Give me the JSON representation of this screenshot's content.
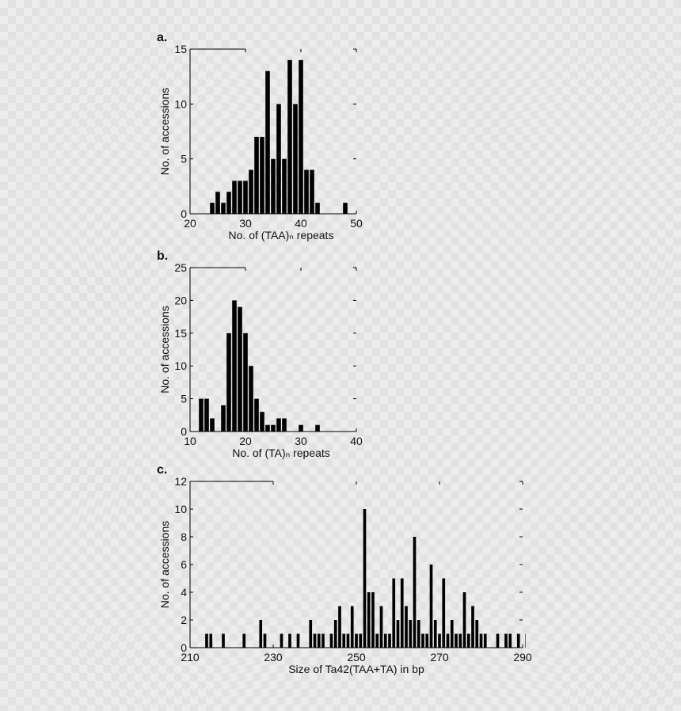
{
  "chart_data": [
    {
      "panel_label": "a.",
      "type": "bar",
      "xlabel": "No. of (TAA)ₙ repeats",
      "ylabel": "No. of accessions",
      "xlim": [
        20,
        50
      ],
      "ylim": [
        0,
        15
      ],
      "xticks": [
        20,
        30,
        40,
        50
      ],
      "yticks": [
        0,
        5,
        10,
        15
      ],
      "bar_width": 0.8,
      "points": [
        {
          "x": 24,
          "y": 1
        },
        {
          "x": 25,
          "y": 2
        },
        {
          "x": 26,
          "y": 1
        },
        {
          "x": 27,
          "y": 2
        },
        {
          "x": 28,
          "y": 3
        },
        {
          "x": 29,
          "y": 3
        },
        {
          "x": 30,
          "y": 3
        },
        {
          "x": 31,
          "y": 4
        },
        {
          "x": 32,
          "y": 7
        },
        {
          "x": 33,
          "y": 7
        },
        {
          "x": 34,
          "y": 13
        },
        {
          "x": 35,
          "y": 5
        },
        {
          "x": 36,
          "y": 10
        },
        {
          "x": 37,
          "y": 5
        },
        {
          "x": 38,
          "y": 14
        },
        {
          "x": 39,
          "y": 10
        },
        {
          "x": 40,
          "y": 14
        },
        {
          "x": 41,
          "y": 4
        },
        {
          "x": 42,
          "y": 4
        },
        {
          "x": 43,
          "y": 1
        },
        {
          "x": 48,
          "y": 1
        }
      ]
    },
    {
      "panel_label": "b.",
      "type": "bar",
      "xlabel": "No. of (TA)ₙ repeats",
      "ylabel": "No. of accessions",
      "xlim": [
        10,
        40
      ],
      "ylim": [
        0,
        25
      ],
      "xticks": [
        10,
        20,
        30,
        40
      ],
      "yticks": [
        0,
        5,
        10,
        15,
        20,
        25
      ],
      "bar_width": 0.8,
      "points": [
        {
          "x": 12,
          "y": 5
        },
        {
          "x": 13,
          "y": 5
        },
        {
          "x": 14,
          "y": 2
        },
        {
          "x": 16,
          "y": 4
        },
        {
          "x": 17,
          "y": 15
        },
        {
          "x": 18,
          "y": 20
        },
        {
          "x": 19,
          "y": 19
        },
        {
          "x": 20,
          "y": 15
        },
        {
          "x": 21,
          "y": 10
        },
        {
          "x": 22,
          "y": 5
        },
        {
          "x": 23,
          "y": 3
        },
        {
          "x": 24,
          "y": 1
        },
        {
          "x": 25,
          "y": 1
        },
        {
          "x": 26,
          "y": 2
        },
        {
          "x": 27,
          "y": 2
        },
        {
          "x": 30,
          "y": 1
        },
        {
          "x": 33,
          "y": 1
        }
      ]
    },
    {
      "panel_label": "c.",
      "type": "bar",
      "xlabel": "Size of Ta42(TAA+TA) in bp",
      "ylabel": "No. of accessions",
      "xlim": [
        210,
        290
      ],
      "ylim": [
        0,
        12
      ],
      "xticks": [
        210,
        230,
        250,
        270,
        290
      ],
      "yticks": [
        0,
        2,
        4,
        6,
        8,
        10,
        12
      ],
      "bar_width": 0.7,
      "points": [
        {
          "x": 214,
          "y": 1
        },
        {
          "x": 215,
          "y": 1
        },
        {
          "x": 218,
          "y": 1
        },
        {
          "x": 223,
          "y": 1
        },
        {
          "x": 227,
          "y": 2
        },
        {
          "x": 228,
          "y": 1
        },
        {
          "x": 232,
          "y": 1
        },
        {
          "x": 234,
          "y": 1
        },
        {
          "x": 236,
          "y": 1
        },
        {
          "x": 239,
          "y": 2
        },
        {
          "x": 240,
          "y": 1
        },
        {
          "x": 241,
          "y": 1
        },
        {
          "x": 242,
          "y": 1
        },
        {
          "x": 244,
          "y": 1
        },
        {
          "x": 245,
          "y": 2
        },
        {
          "x": 246,
          "y": 3
        },
        {
          "x": 247,
          "y": 1
        },
        {
          "x": 248,
          "y": 1
        },
        {
          "x": 249,
          "y": 3
        },
        {
          "x": 250,
          "y": 1
        },
        {
          "x": 251,
          "y": 1
        },
        {
          "x": 252,
          "y": 10
        },
        {
          "x": 253,
          "y": 4
        },
        {
          "x": 254,
          "y": 4
        },
        {
          "x": 255,
          "y": 1
        },
        {
          "x": 256,
          "y": 3
        },
        {
          "x": 257,
          "y": 1
        },
        {
          "x": 258,
          "y": 1
        },
        {
          "x": 259,
          "y": 5
        },
        {
          "x": 260,
          "y": 2
        },
        {
          "x": 261,
          "y": 5
        },
        {
          "x": 262,
          "y": 3
        },
        {
          "x": 263,
          "y": 2
        },
        {
          "x": 264,
          "y": 8
        },
        {
          "x": 265,
          "y": 2
        },
        {
          "x": 266,
          "y": 1
        },
        {
          "x": 267,
          "y": 1
        },
        {
          "x": 268,
          "y": 6
        },
        {
          "x": 269,
          "y": 2
        },
        {
          "x": 270,
          "y": 1
        },
        {
          "x": 271,
          "y": 5
        },
        {
          "x": 272,
          "y": 1
        },
        {
          "x": 273,
          "y": 2
        },
        {
          "x": 274,
          "y": 1
        },
        {
          "x": 275,
          "y": 1
        },
        {
          "x": 276,
          "y": 4
        },
        {
          "x": 277,
          "y": 1
        },
        {
          "x": 278,
          "y": 3
        },
        {
          "x": 279,
          "y": 2
        },
        {
          "x": 280,
          "y": 1
        },
        {
          "x": 281,
          "y": 1
        },
        {
          "x": 284,
          "y": 1
        },
        {
          "x": 286,
          "y": 1
        },
        {
          "x": 287,
          "y": 1
        },
        {
          "x": 289,
          "y": 1
        },
        {
          "x": 291,
          "y": 1
        }
      ]
    }
  ]
}
